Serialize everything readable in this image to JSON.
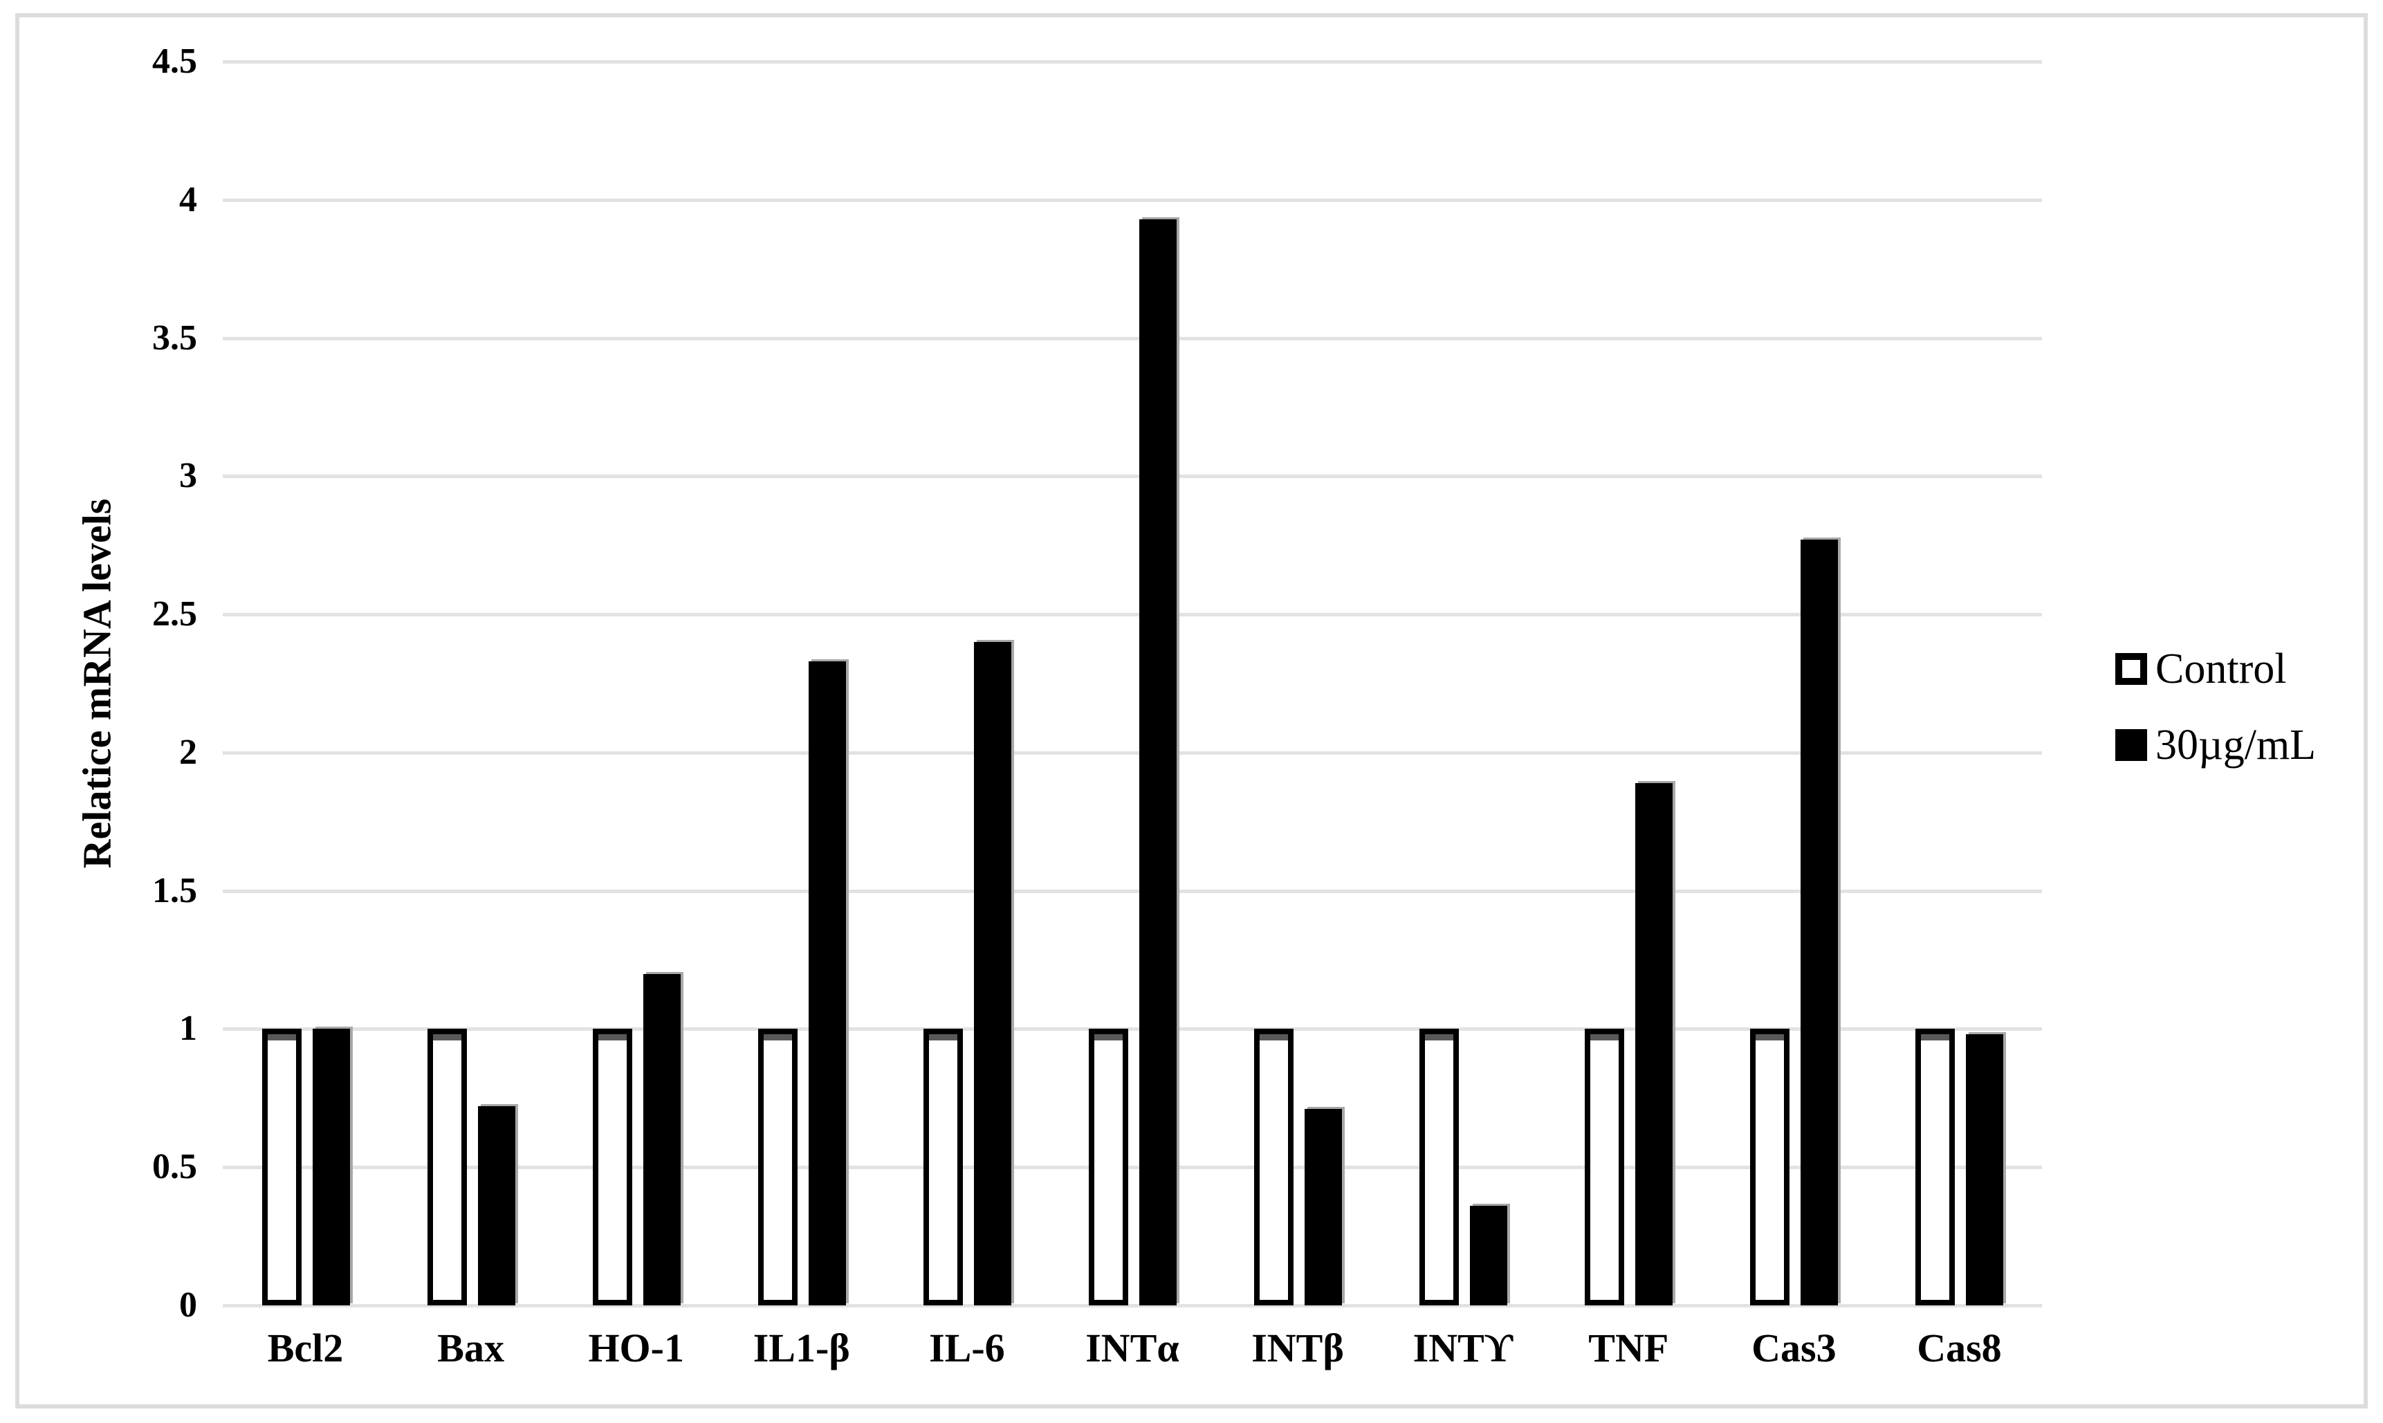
{
  "figure": {
    "background_color": "#ffffff",
    "frame_border_color": "#dcdcdc",
    "gridline_color": "#e2e2e2",
    "bar_shadow_color": "#a8a8a8",
    "control_inner_shadow_color": "#595959"
  },
  "chart_data": {
    "type": "bar",
    "title": "",
    "xlabel": "",
    "ylabel": "Relatice mRNA levels",
    "categories": [
      "Bcl2",
      "Bax",
      "HO-1",
      "IL1-β",
      "IL-6",
      "INTα",
      "INTβ",
      "INTϒ",
      "TNF",
      "Cas3",
      "Cas8"
    ],
    "series": [
      {
        "name": "Control",
        "style": "white-fill-black-outline",
        "values": [
          1.0,
          1.0,
          1.0,
          1.0,
          1.0,
          1.0,
          1.0,
          1.0,
          1.0,
          1.0,
          1.0
        ]
      },
      {
        "name": "30µg/mL",
        "style": "solid-black",
        "values": [
          1.0,
          0.72,
          1.2,
          2.33,
          2.4,
          3.93,
          0.71,
          0.36,
          1.89,
          2.77,
          0.98
        ]
      }
    ],
    "ylim": [
      0,
      4.5
    ],
    "ytick_step": 0.5,
    "ytick_labels": [
      "0",
      "0.5",
      "1",
      "1.5",
      "2",
      "2.5",
      "3",
      "3.5",
      "4",
      "4.5"
    ],
    "grid": true,
    "gridlines_horizontal": true,
    "legend_position": "right"
  }
}
